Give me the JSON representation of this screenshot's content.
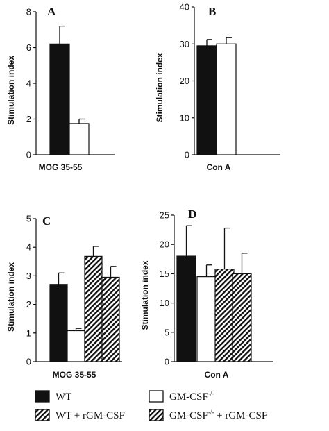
{
  "legend": [
    {
      "key": "wt",
      "label": "WT",
      "fill": "black"
    },
    {
      "key": "gm",
      "label": "GM-CSF",
      "sup": "-/-",
      "fill": "white"
    },
    {
      "key": "wtr",
      "label": "WT + rGM-CSF",
      "fill": "hatch"
    },
    {
      "key": "gmr",
      "label": "GM-CSF",
      "sup": "-/-",
      "suffix": " + rGM-CSF",
      "fill": "hatch"
    }
  ],
  "chart_data": [
    {
      "panel": "A",
      "type": "bar",
      "xlabel": "MOG 35-55",
      "ylabel": "Stimulation index",
      "ylim": [
        0,
        8
      ],
      "yticks": [
        0,
        2,
        4,
        6,
        8
      ],
      "series": [
        {
          "name": "WT",
          "value": 6.2,
          "error": 1.0
        },
        {
          "name": "GM-CSF-/-",
          "value": 1.75,
          "error": 0.25
        }
      ]
    },
    {
      "panel": "B",
      "type": "bar",
      "xlabel": "Con A",
      "ylabel": "Stimulation index",
      "ylim": [
        0,
        40
      ],
      "yticks": [
        0,
        10,
        20,
        30,
        40
      ],
      "series": [
        {
          "name": "WT",
          "value": 29.5,
          "error": 1.7
        },
        {
          "name": "GM-CSF-/-",
          "value": 30.0,
          "error": 1.7
        }
      ]
    },
    {
      "panel": "C",
      "type": "bar",
      "xlabel": "MOG 35-55",
      "ylabel": "Stimulation index",
      "ylim": [
        0,
        5
      ],
      "yticks": [
        0,
        1,
        2,
        3,
        4,
        5
      ],
      "series": [
        {
          "name": "WT",
          "value": 2.7,
          "error": 0.4
        },
        {
          "name": "GM-CSF-/-",
          "value": 1.08,
          "error": 0.08
        },
        {
          "name": "WT + rGM-CSF",
          "value": 3.68,
          "error": 0.35
        },
        {
          "name": "GM-CSF-/- + rGM-CSF",
          "value": 2.95,
          "error": 0.38
        }
      ]
    },
    {
      "panel": "D",
      "type": "bar",
      "xlabel": "Con A",
      "ylabel": "Stimulation index",
      "ylim": [
        0,
        25
      ],
      "yticks": [
        0,
        5,
        10,
        15,
        20,
        25
      ],
      "series": [
        {
          "name": "WT",
          "value": 18.0,
          "error": 5.2
        },
        {
          "name": "GM-CSF-/-",
          "value": 14.5,
          "error": 2.0
        },
        {
          "name": "WT + rGM-CSF",
          "value": 15.8,
          "error": 7.0
        },
        {
          "name": "GM-CSF-/- + rGM-CSF",
          "value": 15.0,
          "error": 3.5
        }
      ]
    }
  ]
}
